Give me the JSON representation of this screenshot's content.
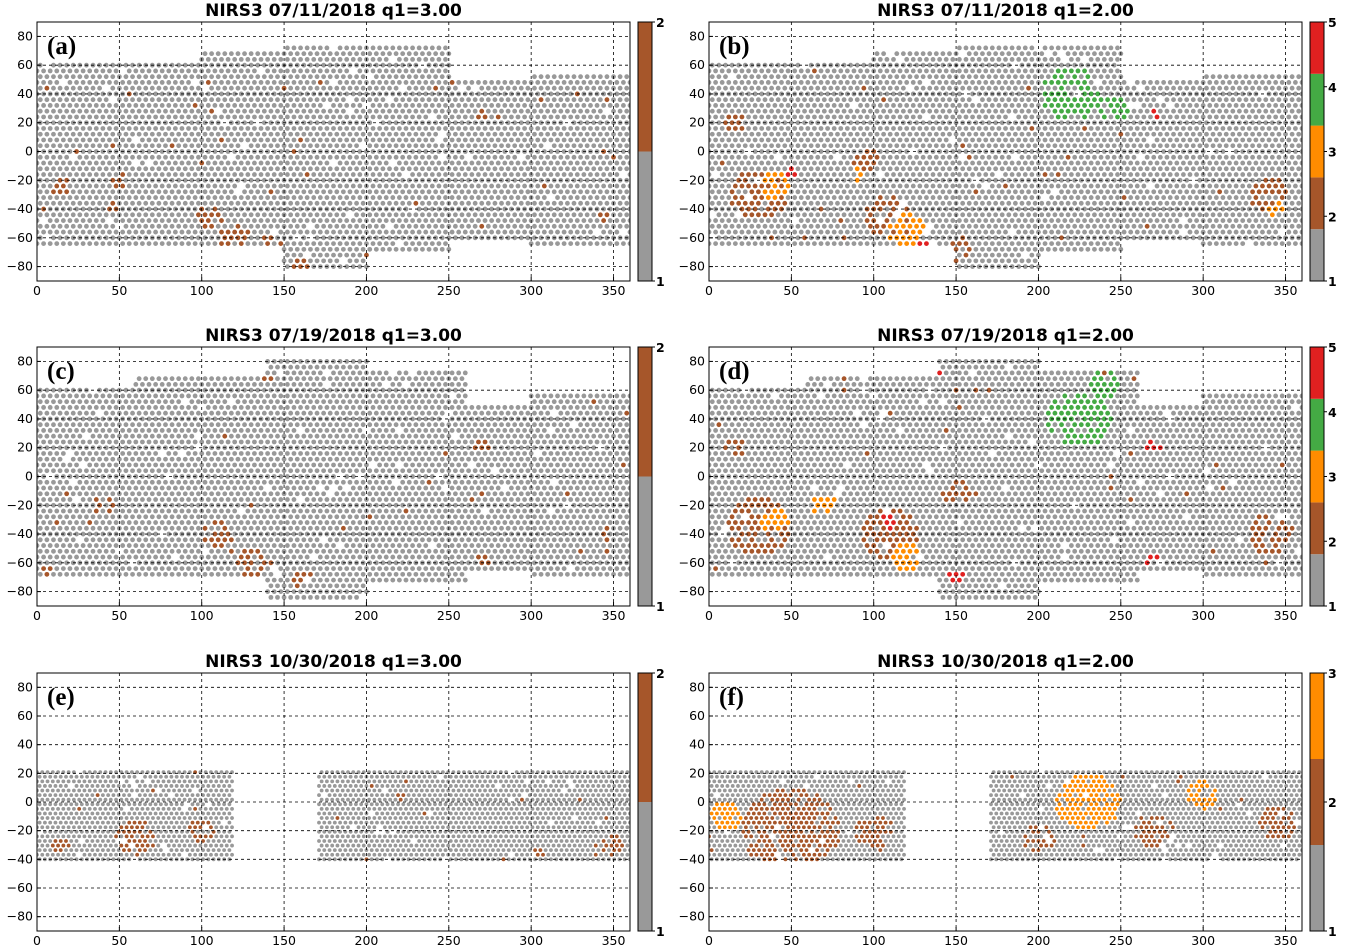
{
  "colors": {
    "gray": "#999999",
    "brown": "#A6562A",
    "orange": "#FF8C00",
    "green": "#44AA44",
    "red": "#E02020"
  },
  "chart_data": [
    {
      "id": "a",
      "type": "scatter",
      "tag": "(a)",
      "title": "NIRS3 07/11/2018 q1=3.00",
      "xlim": [
        0,
        360
      ],
      "ylim": [
        -90,
        90
      ],
      "xticks": [
        "0",
        "50",
        "100",
        "150",
        "200",
        "250",
        "300",
        "350"
      ],
      "yticks": [
        "80",
        "60",
        "40",
        "20",
        "0",
        "−20",
        "−40",
        "−60",
        "−80"
      ],
      "grid": true,
      "colorbar": {
        "ticks": [
          "1",
          "2"
        ]
      },
      "coverage": [
        [
          0,
          60,
          -65,
          60
        ],
        [
          60,
          100,
          -65,
          62
        ],
        [
          100,
          150,
          -65,
          70
        ],
        [
          150,
          200,
          -80,
          75
        ],
        [
          200,
          250,
          -68,
          75
        ],
        [
          250,
          300,
          -62,
          48
        ],
        [
          300,
          360,
          -65,
          55
        ]
      ],
      "clusters": [
        {
          "value": 2,
          "x": 105,
          "y": -45,
          "r": 8
        },
        {
          "value": 2,
          "x": 120,
          "y": -60,
          "r": 9
        },
        {
          "value": 2,
          "x": 140,
          "y": -68,
          "r": 10
        },
        {
          "value": 2,
          "x": 160,
          "y": -80,
          "r": 7
        },
        {
          "value": 2,
          "x": 50,
          "y": -20,
          "r": 7
        },
        {
          "value": 2,
          "x": 15,
          "y": -25,
          "r": 6
        },
        {
          "value": 2,
          "x": 45,
          "y": -38,
          "r": 5
        },
        {
          "value": 2,
          "x": 270,
          "y": 25,
          "r": 5
        },
        {
          "value": 2,
          "x": 345,
          "y": -45,
          "r": 4
        },
        {
          "value": 2,
          "x": 155,
          "y": 0,
          "r": 3
        }
      ]
    },
    {
      "id": "b",
      "type": "scatter",
      "tag": "(b)",
      "title": "NIRS3 07/11/2018 q1=2.00",
      "xlim": [
        0,
        360
      ],
      "ylim": [
        -90,
        90
      ],
      "xticks": [
        "0",
        "50",
        "100",
        "150",
        "200",
        "250",
        "300",
        "350"
      ],
      "yticks": [
        "80",
        "60",
        "40",
        "20",
        "0",
        "−20",
        "−40",
        "−60",
        "−80"
      ],
      "grid": true,
      "colorbar": {
        "ticks": [
          "1",
          "2",
          "3",
          "4",
          "5"
        ]
      },
      "coverage": [
        [
          0,
          60,
          -65,
          60
        ],
        [
          60,
          100,
          -65,
          62
        ],
        [
          100,
          150,
          -65,
          70
        ],
        [
          150,
          200,
          -80,
          75
        ],
        [
          200,
          250,
          -68,
          75
        ],
        [
          250,
          300,
          -62,
          48
        ],
        [
          300,
          360,
          -65,
          55
        ]
      ],
      "clusters": [
        {
          "value": 2,
          "x": 30,
          "y": -30,
          "r": 18
        },
        {
          "value": 3,
          "x": 40,
          "y": -25,
          "r": 10
        },
        {
          "value": 5,
          "x": 50,
          "y": -15,
          "r": 4
        },
        {
          "value": 2,
          "x": 110,
          "y": -45,
          "r": 15
        },
        {
          "value": 3,
          "x": 120,
          "y": -55,
          "r": 12
        },
        {
          "value": 5,
          "x": 130,
          "y": -65,
          "r": 4
        },
        {
          "value": 2,
          "x": 150,
          "y": -70,
          "r": 10
        },
        {
          "value": 4,
          "x": 220,
          "y": 40,
          "r": 18
        },
        {
          "value": 4,
          "x": 245,
          "y": 30,
          "r": 10
        },
        {
          "value": 5,
          "x": 270,
          "y": 25,
          "r": 5
        },
        {
          "value": 2,
          "x": 340,
          "y": -30,
          "r": 12
        },
        {
          "value": 3,
          "x": 345,
          "y": -40,
          "r": 6
        },
        {
          "value": 2,
          "x": 15,
          "y": 20,
          "r": 8
        },
        {
          "value": 2,
          "x": 95,
          "y": -5,
          "r": 8
        },
        {
          "value": 3,
          "x": 90,
          "y": -15,
          "r": 6
        }
      ]
    },
    {
      "id": "c",
      "type": "scatter",
      "tag": "(c)",
      "title": "NIRS3 07/19/2018 q1=3.00",
      "xlim": [
        0,
        360
      ],
      "ylim": [
        -90,
        90
      ],
      "xticks": [
        "0",
        "50",
        "100",
        "150",
        "200",
        "250",
        "300",
        "350"
      ],
      "yticks": [
        "80",
        "60",
        "40",
        "20",
        "0",
        "−20",
        "−40",
        "−60",
        "−80"
      ],
      "grid": true,
      "colorbar": {
        "ticks": [
          "1",
          "2"
        ]
      },
      "coverage": [
        [
          0,
          60,
          -68,
          62
        ],
        [
          60,
          140,
          -70,
          70
        ],
        [
          140,
          200,
          -85,
          83
        ],
        [
          200,
          260,
          -72,
          72
        ],
        [
          260,
          300,
          -65,
          50
        ],
        [
          300,
          360,
          -68,
          58
        ]
      ],
      "clusters": [
        {
          "value": 2,
          "x": 110,
          "y": -40,
          "r": 9
        },
        {
          "value": 2,
          "x": 130,
          "y": -60,
          "r": 9
        },
        {
          "value": 2,
          "x": 160,
          "y": -70,
          "r": 7
        },
        {
          "value": 2,
          "x": 270,
          "y": -58,
          "r": 5
        },
        {
          "value": 2,
          "x": 5,
          "y": -65,
          "r": 4
        },
        {
          "value": 2,
          "x": 40,
          "y": -20,
          "r": 7
        },
        {
          "value": 2,
          "x": 345,
          "y": -40,
          "r": 5
        },
        {
          "value": 2,
          "x": 270,
          "y": 22,
          "r": 5
        },
        {
          "value": 2,
          "x": 140,
          "y": 70,
          "r": 4
        }
      ]
    },
    {
      "id": "d",
      "type": "scatter",
      "tag": "(d)",
      "title": "NIRS3 07/19/2018 q1=2.00",
      "xlim": [
        0,
        360
      ],
      "ylim": [
        -90,
        90
      ],
      "xticks": [
        "0",
        "50",
        "100",
        "150",
        "200",
        "250",
        "300",
        "350"
      ],
      "yticks": [
        "80",
        "60",
        "40",
        "20",
        "0",
        "−20",
        "−40",
        "−60",
        "−80"
      ],
      "grid": true,
      "colorbar": {
        "ticks": [
          "1",
          "2",
          "3",
          "4",
          "5"
        ]
      },
      "coverage": [
        [
          0,
          60,
          -68,
          62
        ],
        [
          60,
          140,
          -70,
          70
        ],
        [
          140,
          200,
          -85,
          83
        ],
        [
          200,
          260,
          -72,
          72
        ],
        [
          260,
          300,
          -65,
          50
        ],
        [
          300,
          360,
          -68,
          58
        ]
      ],
      "clusters": [
        {
          "value": 2,
          "x": 30,
          "y": -35,
          "r": 20
        },
        {
          "value": 3,
          "x": 40,
          "y": -30,
          "r": 10
        },
        {
          "value": 2,
          "x": 110,
          "y": -40,
          "r": 18
        },
        {
          "value": 5,
          "x": 108,
          "y": -32,
          "r": 6
        },
        {
          "value": 3,
          "x": 120,
          "y": -55,
          "r": 10
        },
        {
          "value": 5,
          "x": 150,
          "y": -70,
          "r": 6
        },
        {
          "value": 2,
          "x": 150,
          "y": -10,
          "r": 10
        },
        {
          "value": 4,
          "x": 225,
          "y": 40,
          "r": 20
        },
        {
          "value": 4,
          "x": 240,
          "y": 65,
          "r": 10
        },
        {
          "value": 5,
          "x": 270,
          "y": 22,
          "r": 6
        },
        {
          "value": 5,
          "x": 270,
          "y": -58,
          "r": 6
        },
        {
          "value": 2,
          "x": 340,
          "y": -40,
          "r": 14
        },
        {
          "value": 5,
          "x": 140,
          "y": 72,
          "r": 4
        },
        {
          "value": 2,
          "x": 15,
          "y": 20,
          "r": 8
        },
        {
          "value": 3,
          "x": 70,
          "y": -20,
          "r": 8
        }
      ]
    },
    {
      "id": "e",
      "type": "scatter",
      "tag": "(e)",
      "title": "NIRS3 10/30/2018 q1=3.00",
      "xlim": [
        0,
        360
      ],
      "ylim": [
        -90,
        90
      ],
      "xticks": [
        "0",
        "50",
        "100",
        "150",
        "200",
        "250",
        "300",
        "350"
      ],
      "yticks": [
        "80",
        "60",
        "40",
        "20",
        "0",
        "−20",
        "−40",
        "−60",
        "−80"
      ],
      "grid": true,
      "colorbar": {
        "ticks": [
          "1",
          "2"
        ]
      },
      "coverage": [
        [
          0,
          120,
          -42,
          21
        ],
        [
          170,
          360,
          -42,
          21
        ]
      ],
      "clusters": [
        {
          "value": 2,
          "x": 60,
          "y": -25,
          "r": 12
        },
        {
          "value": 2,
          "x": 100,
          "y": -20,
          "r": 8
        },
        {
          "value": 2,
          "x": 15,
          "y": -30,
          "r": 6
        },
        {
          "value": 2,
          "x": 350,
          "y": -30,
          "r": 7
        },
        {
          "value": 2,
          "x": 305,
          "y": -35,
          "r": 4
        },
        {
          "value": 2,
          "x": 220,
          "y": 5,
          "r": 4
        }
      ]
    },
    {
      "id": "f",
      "type": "scatter",
      "tag": "(f)",
      "title": "NIRS3 10/30/2018 q1=2.00",
      "xlim": [
        0,
        360
      ],
      "ylim": [
        -90,
        90
      ],
      "xticks": [
        "0",
        "50",
        "100",
        "150",
        "200",
        "250",
        "300",
        "350"
      ],
      "yticks": [
        "80",
        "60",
        "40",
        "20",
        "0",
        "−20",
        "−40",
        "−60",
        "−80"
      ],
      "grid": true,
      "colorbar": {
        "ticks": [
          "1",
          "2",
          "3"
        ]
      },
      "coverage": [
        [
          0,
          120,
          -42,
          21
        ],
        [
          170,
          360,
          -42,
          21
        ]
      ],
      "clusters": [
        {
          "value": 2,
          "x": 50,
          "y": -20,
          "r": 30
        },
        {
          "value": 2,
          "x": 100,
          "y": -20,
          "r": 12
        },
        {
          "value": 2,
          "x": 345,
          "y": -15,
          "r": 12
        },
        {
          "value": 2,
          "x": 270,
          "y": -20,
          "r": 12
        },
        {
          "value": 2,
          "x": 200,
          "y": -25,
          "r": 10
        },
        {
          "value": 3,
          "x": 230,
          "y": 0,
          "r": 20
        },
        {
          "value": 3,
          "x": 10,
          "y": -10,
          "r": 10
        },
        {
          "value": 3,
          "x": 300,
          "y": 5,
          "r": 10
        }
      ]
    }
  ]
}
